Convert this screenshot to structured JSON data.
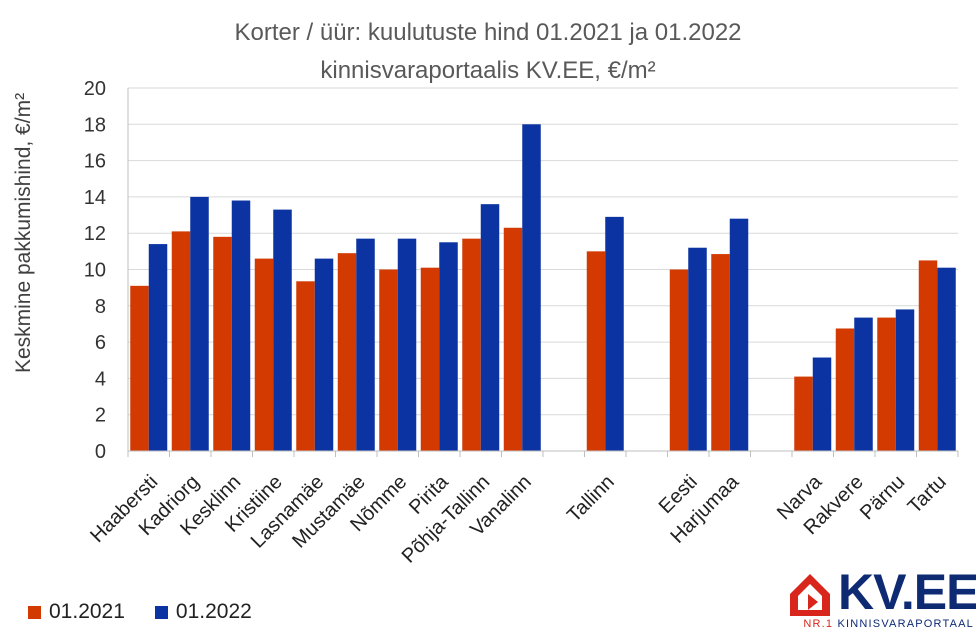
{
  "chart_data": {
    "type": "bar",
    "title": "Korter / üür: kuulutuste hind 01.2021 ja 01.2022",
    "subtitle": "kinnisvaraportaalis KV.EE, €/m²",
    "ylabel": "Keskmine pakkumishind, €/m²",
    "xlabel": "",
    "ylim": [
      0,
      20
    ],
    "yticks": [
      "0",
      "2",
      "4",
      "6",
      "8",
      "10",
      "12",
      "14",
      "16",
      "18",
      "20"
    ],
    "grid": true,
    "legend_position": "bottom-left",
    "categories": [
      "Haabersti",
      "Kadriorg",
      "Kesklinn",
      "Kristiine",
      "Lasnamäe",
      "Mustamäe",
      "Nõmme",
      "Pirita",
      "Põhja-Tallinn",
      "Vanalinn",
      "",
      "Tallinn",
      "",
      "Eesti",
      "Harjumaa",
      "",
      "Narva",
      "Rakvere",
      "Pärnu",
      "Tartu"
    ],
    "series": [
      {
        "name": "01.2021",
        "color": "#d33a02",
        "values": [
          9.1,
          12.1,
          11.8,
          10.6,
          9.35,
          10.9,
          10.0,
          10.1,
          11.7,
          12.3,
          null,
          11.0,
          null,
          10.0,
          10.85,
          null,
          4.1,
          6.75,
          7.35,
          10.5
        ]
      },
      {
        "name": "01.2022",
        "color": "#0b33a2",
        "values": [
          11.4,
          14.0,
          13.8,
          13.3,
          10.6,
          11.7,
          11.7,
          11.5,
          13.6,
          18.0,
          null,
          12.9,
          null,
          11.2,
          12.8,
          null,
          5.15,
          7.35,
          7.8,
          10.1
        ]
      }
    ]
  },
  "logo": {
    "name": "KV.EE",
    "tag_nr": "NR.1",
    "tag_rest": "KINNISVARAPORTAAL",
    "brand_color": "#0d2a73",
    "accent_color": "#d9261c"
  }
}
